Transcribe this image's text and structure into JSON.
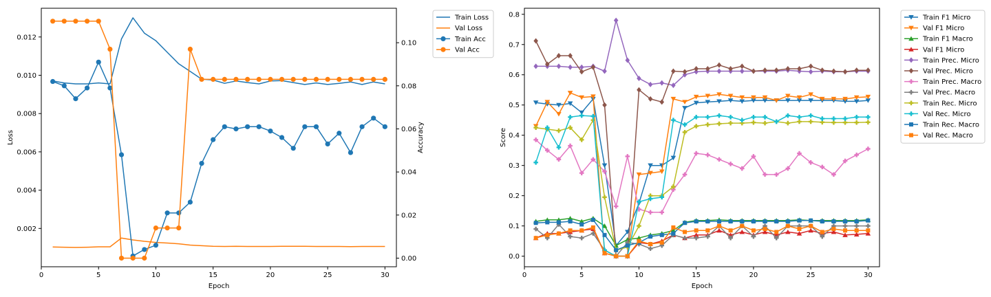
{
  "chart_data": [
    {
      "type": "line",
      "title": "",
      "xlabel": "Epoch",
      "ylabel": "Loss",
      "y2label": "Accuracy",
      "xlim": [
        0,
        31
      ],
      "ylim": [
        0,
        0.0135
      ],
      "y2lim": [
        -0.004,
        0.116
      ],
      "xticks": [
        0,
        5,
        10,
        15,
        20,
        25,
        30
      ],
      "yticks": [
        0.002,
        0.004,
        0.006,
        0.008,
        0.01,
        0.012
      ],
      "ytick_labels": [
        "0.002",
        "0.004",
        "0.006",
        "0.008",
        "0.010",
        "0.012"
      ],
      "y2ticks": [
        0.0,
        0.02,
        0.04,
        0.06,
        0.08,
        0.1
      ],
      "y2tick_labels": [
        "0.00",
        "0.02",
        "0.04",
        "0.06",
        "0.08",
        "0.10"
      ],
      "legend_position": "outside-right-top",
      "x": [
        1,
        2,
        3,
        4,
        5,
        6,
        7,
        8,
        9,
        10,
        11,
        12,
        13,
        14,
        15,
        16,
        17,
        18,
        19,
        20,
        21,
        22,
        23,
        24,
        25,
        26,
        27,
        28,
        29,
        30
      ],
      "series": [
        {
          "name": "Train Loss",
          "axis": "left",
          "color": "#1f77b4",
          "marker": "none",
          "values": [
            0.0097,
            0.0096,
            0.00955,
            0.00955,
            0.0096,
            0.00955,
            0.0119,
            0.013,
            0.0122,
            0.0118,
            0.0112,
            0.0106,
            0.0102,
            0.0098,
            0.00975,
            0.00958,
            0.0097,
            0.00962,
            0.00955,
            0.0097,
            0.00972,
            0.00962,
            0.00952,
            0.0096,
            0.00952,
            0.00958,
            0.00965,
            0.00952,
            0.00965,
            0.00955
          ]
        },
        {
          "name": "Val Loss",
          "axis": "left",
          "color": "#ff7f0e",
          "marker": "none",
          "values": [
            0.00103,
            0.00102,
            0.00101,
            0.00102,
            0.00104,
            0.00104,
            0.0015,
            0.0014,
            0.00133,
            0.00127,
            0.00124,
            0.0012,
            0.00113,
            0.0011,
            0.00107,
            0.00106,
            0.00107,
            0.00106,
            0.00106,
            0.00106,
            0.00107,
            0.00107,
            0.00107,
            0.00106,
            0.00106,
            0.00106,
            0.00105,
            0.00106,
            0.00106,
            0.00106
          ]
        },
        {
          "name": "Train Acc",
          "axis": "right",
          "color": "#1f77b4",
          "marker": "circle",
          "values": [
            0.082,
            0.08,
            0.074,
            0.079,
            0.091,
            0.079,
            0.048,
            0.001,
            0.004,
            0.006,
            0.021,
            0.021,
            0.026,
            0.044,
            0.055,
            0.061,
            0.06,
            0.061,
            0.061,
            0.059,
            0.056,
            0.051,
            0.061,
            0.061,
            0.053,
            0.058,
            0.049,
            0.061,
            0.065,
            0.061
          ]
        },
        {
          "name": "Val Acc",
          "axis": "right",
          "color": "#ff7f0e",
          "marker": "circle",
          "values": [
            0.11,
            0.11,
            0.11,
            0.11,
            0.11,
            0.097,
            0.0,
            0.0,
            0.0,
            0.014,
            0.014,
            0.014,
            0.097,
            0.083,
            0.083,
            0.083,
            0.083,
            0.083,
            0.083,
            0.083,
            0.083,
            0.083,
            0.083,
            0.083,
            0.083,
            0.083,
            0.083,
            0.083,
            0.083,
            0.083
          ]
        }
      ]
    },
    {
      "type": "line",
      "title": "",
      "xlabel": "Epoch",
      "ylabel": "Score",
      "xlim": [
        0,
        31
      ],
      "ylim": [
        -0.035,
        0.82
      ],
      "xticks": [
        0,
        5,
        10,
        15,
        20,
        25,
        30
      ],
      "yticks": [
        0.0,
        0.1,
        0.2,
        0.3,
        0.4,
        0.5,
        0.6,
        0.7,
        0.8
      ],
      "ytick_labels": [
        "0.0",
        "0.1",
        "0.2",
        "0.3",
        "0.4",
        "0.5",
        "0.6",
        "0.7",
        "0.8"
      ],
      "legend_position": "outside-right-top",
      "x": [
        1,
        2,
        3,
        4,
        5,
        6,
        7,
        8,
        9,
        10,
        11,
        12,
        13,
        14,
        15,
        16,
        17,
        18,
        19,
        20,
        21,
        22,
        23,
        24,
        25,
        26,
        27,
        28,
        29,
        30
      ],
      "series": [
        {
          "name": "Train F1 Micro",
          "color": "#1f77b4",
          "marker": "triangle-down",
          "values": [
            0.508,
            0.503,
            0.5,
            0.505,
            0.475,
            0.52,
            0.3,
            0.035,
            0.08,
            0.175,
            0.3,
            0.3,
            0.325,
            0.49,
            0.507,
            0.51,
            0.512,
            0.515,
            0.512,
            0.515,
            0.515,
            0.515,
            0.515,
            0.515,
            0.515,
            0.515,
            0.515,
            0.512,
            0.512,
            0.515
          ]
        },
        {
          "name": "Val F1 Micro",
          "color": "#ff7f0e",
          "marker": "triangle-down",
          "values": [
            0.43,
            0.51,
            0.47,
            0.54,
            0.525,
            0.528,
            0.01,
            0.0,
            0.0,
            0.27,
            0.275,
            0.28,
            0.52,
            0.51,
            0.527,
            0.53,
            0.535,
            0.53,
            0.525,
            0.525,
            0.525,
            0.515,
            0.53,
            0.525,
            0.535,
            0.52,
            0.52,
            0.52,
            0.525,
            0.527
          ]
        },
        {
          "name": "Train F1 Macro",
          "color": "#2ca02c",
          "marker": "triangle-up",
          "values": [
            0.115,
            0.12,
            0.12,
            0.125,
            0.115,
            0.125,
            0.1,
            0.035,
            0.055,
            0.06,
            0.07,
            0.075,
            0.085,
            0.112,
            0.118,
            0.118,
            0.12,
            0.118,
            0.118,
            0.118,
            0.118,
            0.118,
            0.118,
            0.12,
            0.118,
            0.118,
            0.118,
            0.118,
            0.118,
            0.12
          ]
        },
        {
          "name": "Val F1 Micro",
          "color": "#d62728",
          "marker": "triangle-up",
          "values": [
            0.06,
            0.075,
            0.075,
            0.08,
            0.085,
            0.09,
            0.01,
            0.0,
            0.0,
            0.045,
            0.04,
            0.05,
            0.07,
            0.06,
            0.07,
            0.07,
            0.085,
            0.07,
            0.08,
            0.07,
            0.08,
            0.07,
            0.08,
            0.075,
            0.085,
            0.075,
            0.08,
            0.07,
            0.072,
            0.075
          ]
        },
        {
          "name": "Train Prec. Micro",
          "color": "#9467bd",
          "marker": "diamond",
          "values": [
            0.628,
            0.628,
            0.628,
            0.625,
            0.625,
            0.628,
            0.612,
            0.78,
            0.648,
            0.588,
            0.568,
            0.573,
            0.565,
            0.6,
            0.61,
            0.612,
            0.612,
            0.612,
            0.612,
            0.612,
            0.612,
            0.612,
            0.615,
            0.612,
            0.61,
            0.612,
            0.61,
            0.61,
            0.612,
            0.612
          ]
        },
        {
          "name": "Val Prec. Micro",
          "color": "#8c564b",
          "marker": "diamond",
          "values": [
            0.712,
            0.635,
            0.663,
            0.663,
            0.61,
            0.625,
            0.5,
            0.0,
            0.0,
            0.55,
            0.52,
            0.51,
            0.612,
            0.61,
            0.62,
            0.62,
            0.632,
            0.62,
            0.628,
            0.612,
            0.615,
            0.615,
            0.62,
            0.62,
            0.628,
            0.615,
            0.612,
            0.61,
            0.615,
            0.615
          ]
        },
        {
          "name": "Train Prec. Macro",
          "color": "#e377c2",
          "marker": "plus",
          "values": [
            0.385,
            0.35,
            0.32,
            0.365,
            0.275,
            0.32,
            0.28,
            0.165,
            0.33,
            0.155,
            0.145,
            0.145,
            0.22,
            0.27,
            0.34,
            0.335,
            0.32,
            0.305,
            0.29,
            0.33,
            0.27,
            0.27,
            0.29,
            0.34,
            0.31,
            0.295,
            0.27,
            0.315,
            0.335,
            0.355
          ]
        },
        {
          "name": "Val Prec. Macro",
          "color": "#7f7f7f",
          "marker": "plus",
          "values": [
            0.09,
            0.06,
            0.105,
            0.065,
            0.06,
            0.075,
            0.02,
            0.0,
            0.045,
            0.04,
            0.025,
            0.035,
            0.07,
            0.06,
            0.06,
            0.065,
            0.1,
            0.06,
            0.1,
            0.065,
            0.1,
            0.06,
            0.1,
            0.1,
            0.1,
            0.065,
            0.1,
            0.1,
            0.1,
            0.1
          ]
        },
        {
          "name": "Train Rec. Micro",
          "color": "#bcbd22",
          "marker": "plus",
          "values": [
            0.425,
            0.42,
            0.415,
            0.425,
            0.385,
            0.45,
            0.195,
            0.02,
            0.03,
            0.1,
            0.2,
            0.2,
            0.23,
            0.41,
            0.43,
            0.435,
            0.438,
            0.44,
            0.44,
            0.442,
            0.44,
            0.445,
            0.44,
            0.445,
            0.445,
            0.443,
            0.442,
            0.442,
            0.442,
            0.443
          ]
        },
        {
          "name": "Val Rec. Micro",
          "color": "#17becf",
          "marker": "plus",
          "values": [
            0.31,
            0.425,
            0.36,
            0.46,
            0.465,
            0.463,
            0.02,
            0.0,
            0.0,
            0.18,
            0.19,
            0.195,
            0.45,
            0.435,
            0.46,
            0.46,
            0.465,
            0.46,
            0.45,
            0.46,
            0.46,
            0.445,
            0.465,
            0.46,
            0.465,
            0.455,
            0.455,
            0.455,
            0.46,
            0.46
          ]
        },
        {
          "name": "Train Rec. Macro",
          "color": "#1f77b4",
          "marker": "square",
          "values": [
            0.11,
            0.112,
            0.112,
            0.115,
            0.105,
            0.12,
            0.07,
            0.02,
            0.035,
            0.045,
            0.065,
            0.07,
            0.075,
            0.11,
            0.115,
            0.115,
            0.115,
            0.115,
            0.115,
            0.115,
            0.115,
            0.115,
            0.115,
            0.118,
            0.118,
            0.115,
            0.115,
            0.115,
            0.115,
            0.118
          ]
        },
        {
          "name": "Val Rec. Macro",
          "color": "#ff7f0e",
          "marker": "square",
          "values": [
            0.06,
            0.07,
            0.075,
            0.085,
            0.085,
            0.095,
            0.01,
            0.0,
            0.0,
            0.05,
            0.04,
            0.045,
            0.095,
            0.08,
            0.085,
            0.085,
            0.1,
            0.085,
            0.1,
            0.085,
            0.09,
            0.08,
            0.1,
            0.09,
            0.1,
            0.08,
            0.09,
            0.085,
            0.085,
            0.085
          ]
        }
      ]
    }
  ]
}
